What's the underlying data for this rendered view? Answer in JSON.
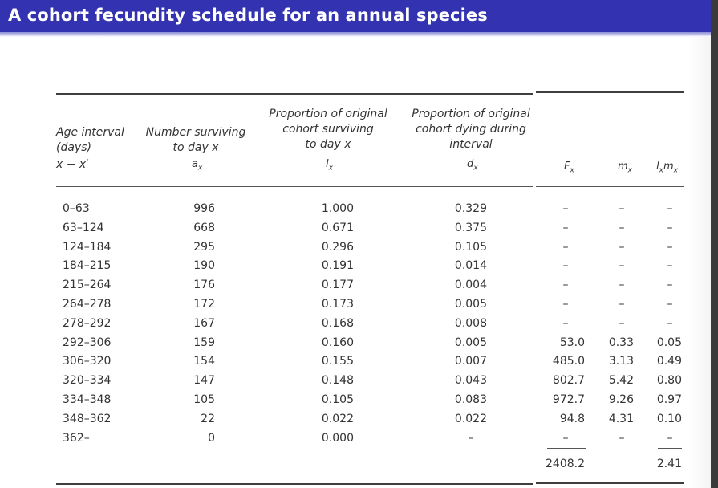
{
  "slide": {
    "title": "A cohort fecundity schedule for an annual species"
  },
  "table": {
    "headers": {
      "age_interval": [
        "Age interval",
        "(days)"
      ],
      "age_symbol": "x − x′",
      "number_surviving": [
        "Number surviving",
        "to day x"
      ],
      "number_surviving_symbol": "a",
      "number_surviving_sub": "x",
      "proportion_surviving": [
        "Proportion of original",
        "cohort surviving",
        "to day x"
      ],
      "proportion_surviving_symbol": "l",
      "proportion_surviving_sub": "x",
      "proportion_dying": [
        "Proportion of original",
        "cohort dying during",
        "interval"
      ],
      "proportion_dying_symbol": "d",
      "proportion_dying_sub": "x",
      "fecundity_symbol": "F",
      "fecundity_sub": "x",
      "per_capita_symbol": "m",
      "per_capita_sub": "x",
      "lxmx_symbol_l": "l",
      "lxmx_sub_l": "x",
      "lxmx_symbol_m": "m",
      "lxmx_sub_m": "x"
    },
    "rows": [
      {
        "age": "0–63",
        "ax": "996",
        "lx": "1.000",
        "dx": "0.329",
        "Fx": "–",
        "mx": "–",
        "lxmx": "–"
      },
      {
        "age": "63–124",
        "ax": "668",
        "lx": "0.671",
        "dx": "0.375",
        "Fx": "–",
        "mx": "–",
        "lxmx": "–"
      },
      {
        "age": "124–184",
        "ax": "295",
        "lx": "0.296",
        "dx": "0.105",
        "Fx": "–",
        "mx": "–",
        "lxmx": "–"
      },
      {
        "age": "184–215",
        "ax": "190",
        "lx": "0.191",
        "dx": "0.014",
        "Fx": "–",
        "mx": "–",
        "lxmx": "–"
      },
      {
        "age": "215–264",
        "ax": "176",
        "lx": "0.177",
        "dx": "0.004",
        "Fx": "–",
        "mx": "–",
        "lxmx": "–"
      },
      {
        "age": "264–278",
        "ax": "172",
        "lx": "0.173",
        "dx": "0.005",
        "Fx": "–",
        "mx": "–",
        "lxmx": "–"
      },
      {
        "age": "278–292",
        "ax": "167",
        "lx": "0.168",
        "dx": "0.008",
        "Fx": "–",
        "mx": "–",
        "lxmx": "–"
      },
      {
        "age": "292–306",
        "ax": "159",
        "lx": "0.160",
        "dx": "0.005",
        "Fx": "53.0",
        "mx": "0.33",
        "lxmx": "0.05"
      },
      {
        "age": "306–320",
        "ax": "154",
        "lx": "0.155",
        "dx": "0.007",
        "Fx": "485.0",
        "mx": "3.13",
        "lxmx": "0.49"
      },
      {
        "age": "320–334",
        "ax": "147",
        "lx": "0.148",
        "dx": "0.043",
        "Fx": "802.7",
        "mx": "5.42",
        "lxmx": "0.80"
      },
      {
        "age": "334–348",
        "ax": "105",
        "lx": "0.105",
        "dx": "0.083",
        "Fx": "972.7",
        "mx": "9.26",
        "lxmx": "0.97"
      },
      {
        "age": "348–362",
        "ax": "22",
        "lx": "0.022",
        "dx": "0.022",
        "Fx": "94.8",
        "mx": "4.31",
        "lxmx": "0.10"
      },
      {
        "age": "362–",
        "ax": "0",
        "lx": "0.000",
        "dx": "–",
        "Fx": "–",
        "mx": "–",
        "lxmx": "–"
      }
    ],
    "totals": {
      "Fx": "2408.2",
      "lxmx": "2.41"
    }
  }
}
